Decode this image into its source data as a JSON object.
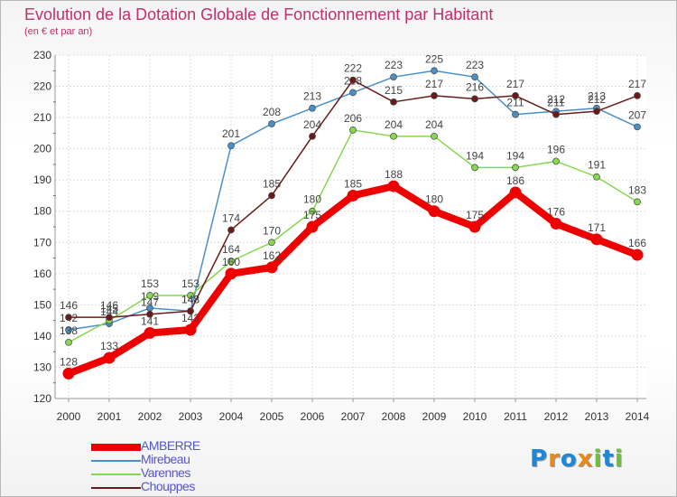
{
  "chart_data": {
    "type": "line",
    "title": "Evolution de la Dotation Globale de Fonctionnement par Habitant",
    "subtitle": "(en € et par an)",
    "xlabel": "",
    "ylabel": "",
    "categories": [
      "2000",
      "2001",
      "2002",
      "2003",
      "2004",
      "2005",
      "2006",
      "2007",
      "2008",
      "2009",
      "2010",
      "2011",
      "2012",
      "2013",
      "2014"
    ],
    "ylim": [
      120,
      230
    ],
    "yticks": [
      120,
      130,
      140,
      150,
      160,
      170,
      180,
      190,
      200,
      210,
      220,
      230
    ],
    "grid": true,
    "legend_position": "bottom-left",
    "series": [
      {
        "name": "Mirebeau",
        "color": "#4a90c8",
        "values": [
          142,
          144,
          149,
          148,
          201,
          208,
          213,
          218,
          223,
          225,
          223,
          211,
          212,
          213,
          207
        ]
      },
      {
        "name": "Varennes",
        "color": "#86d850",
        "values": [
          138,
          145,
          153,
          153,
          164,
          170,
          180,
          206,
          204,
          204,
          194,
          194,
          196,
          191,
          183
        ]
      },
      {
        "name": "Chouppes",
        "color": "#6b1a1a",
        "values": [
          146,
          146,
          147,
          148,
          174,
          185,
          204,
          222,
          215,
          217,
          216,
          217,
          211,
          212,
          217
        ]
      },
      {
        "name": "AMBERRE",
        "color": "#ee0000",
        "values": [
          128,
          133,
          141,
          142,
          160,
          162,
          175,
          185,
          188,
          180,
          175,
          186,
          176,
          171,
          166
        ]
      }
    ]
  },
  "legend": {
    "items": [
      {
        "label": "AMBERRE",
        "color": "#ee0000"
      },
      {
        "label": "Mirebeau",
        "color": "#4a90c8"
      },
      {
        "label": "Varennes",
        "color": "#86d850"
      },
      {
        "label": "Chouppes",
        "color": "#6b1a1a"
      }
    ]
  },
  "logo": {
    "letters": [
      {
        "ch": "P",
        "color": "#1e88d8"
      },
      {
        "ch": "r",
        "color": "#e8891a"
      },
      {
        "ch": "o",
        "color": "#1e88d8"
      },
      {
        "ch": "x",
        "color": "#e8891a"
      },
      {
        "ch": "i",
        "color": "#6cc03c"
      },
      {
        "ch": "t",
        "color": "#1e88d8"
      },
      {
        "ch": "i",
        "color": "#6cc03c"
      }
    ]
  }
}
